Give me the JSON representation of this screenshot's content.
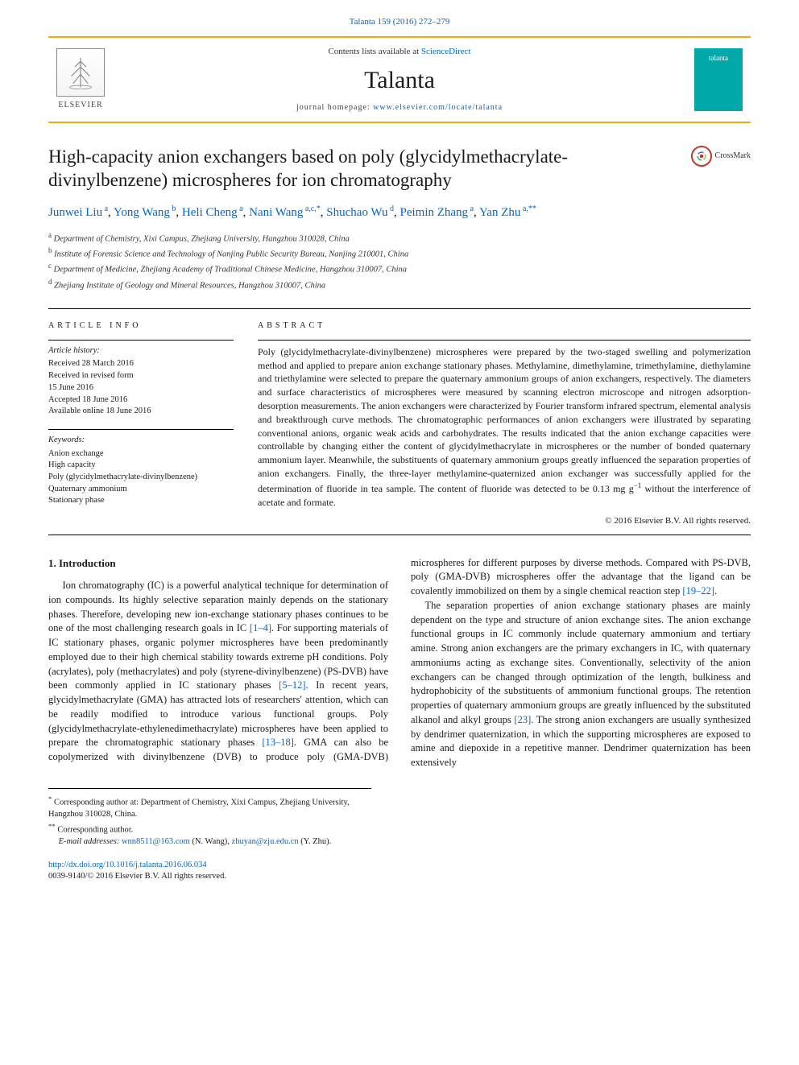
{
  "meta": {
    "citation": "Talanta 159 (2016) 272–279",
    "contents_prefix": "Contents lists available at ",
    "contents_link": "ScienceDirect",
    "journal_name": "Talanta",
    "homepage_prefix": "journal homepage: ",
    "homepage_url": "www.elsevier.com/locate/talanta",
    "publisher_name": "ELSEVIER",
    "cover_text": "talanta"
  },
  "crossmark": {
    "label": "CrossMark"
  },
  "article": {
    "title": "High-capacity anion exchangers based on poly (glycidylmethacrylate-divinylbenzene) microspheres for ion chromatography",
    "authors_html": [
      {
        "name": "Junwei Liu",
        "sup": "a"
      },
      {
        "name": "Yong Wang",
        "sup": "b"
      },
      {
        "name": "Heli Cheng",
        "sup": "a"
      },
      {
        "name": "Nani Wang",
        "sup": "a,c,*"
      },
      {
        "name": "Shuchao Wu",
        "sup": "d"
      },
      {
        "name": "Peimin Zhang",
        "sup": "a"
      },
      {
        "name": "Yan Zhu",
        "sup": "a,**"
      }
    ],
    "affiliations": [
      {
        "sup": "a",
        "text": "Department of Chemistry, Xixi Campus, Zhejiang University, Hangzhou 310028, China"
      },
      {
        "sup": "b",
        "text": "Institute of Forensic Science and Technology of Nanjing Public Security Bureau, Nanjing 210001, China"
      },
      {
        "sup": "c",
        "text": "Department of Medicine, Zhejiang Academy of Traditional Chinese Medicine, Hangzhou 310007, China"
      },
      {
        "sup": "d",
        "text": "Zhejiang Institute of Geology and Mineral Resources, Hangzhou 310007, China"
      }
    ]
  },
  "info": {
    "label": "ARTICLE INFO",
    "history_label": "Article history:",
    "history": [
      "Received 28 March 2016",
      "Received in revised form",
      "15 June 2016",
      "Accepted 18 June 2016",
      "Available online 18 June 2016"
    ],
    "keywords_label": "Keywords:",
    "keywords": [
      "Anion exchange",
      "High capacity",
      "Poly (glycidylmethacrylate-divinylbenzene)",
      "Quaternary ammonium",
      "Stationary phase"
    ]
  },
  "abstract": {
    "label": "ABSTRACT",
    "text": "Poly (glycidylmethacrylate-divinylbenzene) microspheres were prepared by the two-staged swelling and polymerization method and applied to prepare anion exchange stationary phases. Methylamine, dimethylamine, trimethylamine, diethylamine and triethylamine were selected to prepare the quaternary ammonium groups of anion exchangers, respectively. The diameters and surface characteristics of microspheres were measured by scanning electron microscope and nitrogen adsorption-desorption measurements. The anion exchangers were characterized by Fourier transform infrared spectrum, elemental analysis and breakthrough curve methods. The chromatographic performances of anion exchangers were illustrated by separating conventional anions, organic weak acids and carbohydrates. The results indicated that the anion exchange capacities were controllable by changing either the content of glycidylmethacrylate in microspheres or the number of bonded quaternary ammonium layer. Meanwhile, the substituents of quaternary ammonium groups greatly influenced the separation properties of anion exchangers. Finally, the three-layer methylamine-quaternized anion exchanger was successfully applied for the determination of fluoride in tea sample. The content of fluoride was detected to be 0.13 mg g",
    "unit_tail": " without the interference of acetate and formate.",
    "copyright": "© 2016 Elsevier B.V. All rights reserved."
  },
  "body": {
    "heading": "1. Introduction",
    "p1_a": "Ion chromatography (IC) is a powerful analytical technique for determination of ion compounds. Its highly selective separation mainly depends on the stationary phases. Therefore, developing new ion-exchange stationary phases continues to be one of the most challenging research goals in IC ",
    "ref1": "[1–4]",
    "p1_b": ". For supporting materials of IC stationary phases, organic polymer microspheres have been predominantly employed due to their high chemical stability towards extreme pH conditions. Poly (acrylates), poly (methacrylates) and poly (styrene-divinylbenzene) (PS-DVB) have been commonly applied in IC stationary phases ",
    "ref2": "[5–12]",
    "p1_c": ". In recent years, glycidylmethacrylate (GMA) has attracted lots of researchers' attention, which can be readily modified to introduce various functional groups. Poly (glycidylmethacrylate-ethylenedimethacrylate) microspheres have been applied to prepare the chromatographic stationary phases ",
    "ref3": "[13–18]",
    "p1_d": ". GMA can also be copolymerized with divinylbenzene (DVB) to produce poly (GMA-DVB) microspheres for different purposes by diverse methods. Compared with PS-DVB, poly (GMA-DVB) microspheres offer the advantage that the ligand can be covalently immobilized on them by a single chemical reaction step ",
    "ref4": "[19–22]",
    "p1_e": ".",
    "p2_a": "The separation properties of anion exchange stationary phases are mainly dependent on the type and structure of anion exchange sites. The anion exchange functional groups in IC commonly include quaternary ammonium and tertiary amine. Strong anion exchangers are the primary exchangers in IC, with quaternary ammoniums acting as exchange sites. Conventionally, selectivity of the anion exchangers can be changed through optimization of the length, bulkiness and hydrophobicity of the substituents of ammonium functional groups. The retention properties of quaternary ammonium groups are greatly influenced by the substituted alkanol and alkyl groups ",
    "ref5": "[23]",
    "p2_b": ". The strong anion exchangers are usually synthesized by dendrimer quaternization, in which the supporting microspheres are exposed to amine and diepoxide in a repetitive manner. Dendrimer quaternization has been extensively"
  },
  "footnotes": {
    "corr1_sym": "*",
    "corr1": "Corresponding author at: Department of Chemistry, Xixi Campus, Zhejiang University, Hangzhou 310028, China.",
    "corr2_sym": "**",
    "corr2": "Corresponding author.",
    "email_label": "E-mail addresses: ",
    "email1": "wnn8511@163.com",
    "email1_who": " (N. Wang), ",
    "email2": "zhuyan@zju.edu.cn",
    "email2_who": " (Y. Zhu)."
  },
  "doi": {
    "url": "http://dx.doi.org/10.1016/j.talanta.2016.06.034",
    "issn_line": "0039-9140/© 2016 Elsevier B.V. All rights reserved."
  },
  "colors": {
    "link": "#0066cc",
    "accent": "#f7a800",
    "cover": "#00a8a8",
    "crossmark_ring": "#c0392b"
  }
}
